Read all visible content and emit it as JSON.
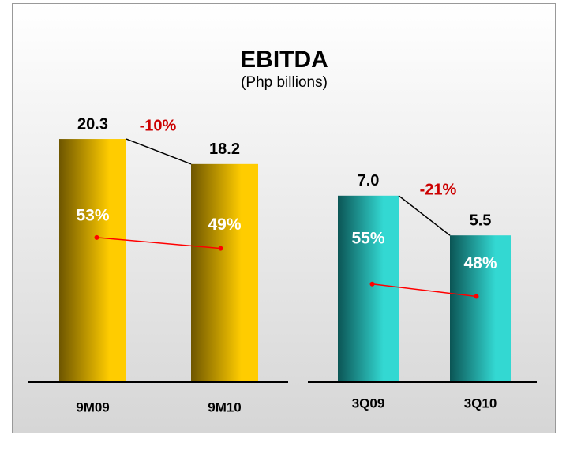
{
  "title": "EBITDA",
  "subtitle": "(Php billions)",
  "chart_data": [
    {
      "type": "bar",
      "categories": [
        "9M09",
        "9M10"
      ],
      "values": [
        20.3,
        18.2
      ],
      "ylim": [
        0,
        25
      ],
      "colors": [
        "#6e5600",
        "#ffcc00"
      ],
      "annotation": "-10%",
      "margin": {
        "values": [
          53,
          49
        ],
        "value_labels": [
          "53%",
          "49%"
        ],
        "color": "#ff0000",
        "y2lim": [
          0,
          110
        ]
      }
    },
    {
      "type": "bar",
      "categories": [
        "3Q09",
        "3Q10"
      ],
      "values": [
        7.0,
        5.5
      ],
      "value_labels": [
        "7.0",
        "5.5"
      ],
      "ylim": [
        0,
        10
      ],
      "colors": [
        "#0b5555",
        "#33d8d2"
      ],
      "annotation": "-21%",
      "margin": {
        "values": [
          55,
          48
        ],
        "value_labels": [
          "55%",
          "48%"
        ],
        "color": "#ff0000",
        "y2lim": [
          0,
          150
        ]
      }
    }
  ]
}
